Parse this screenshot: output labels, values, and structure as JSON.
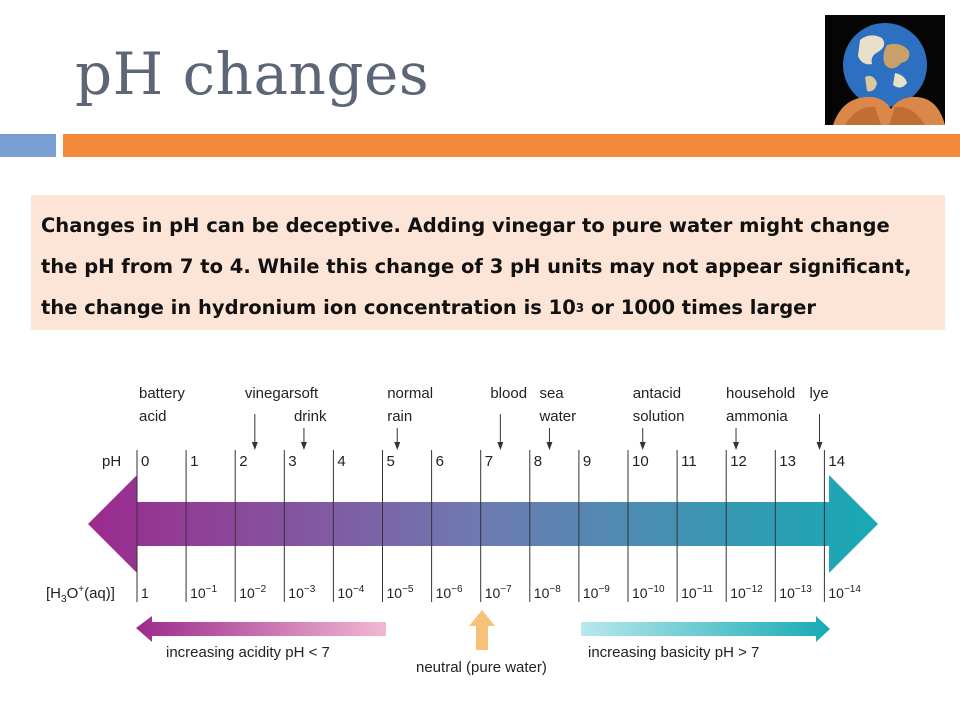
{
  "slide": {
    "title": "pH changes",
    "accent_colors": {
      "blue_bar": "#7a9fd4",
      "orange_bar": "#f3893a",
      "note_bg": "#fce4d6"
    },
    "image_icon": "earth-in-hands-icon",
    "note": {
      "line1": "Changes in pH can be deceptive.  Adding vinegar to pure water might change",
      "line2": "the pH from 7 to 4.  While this change of 3 pH units may not appear significant,",
      "line3_before": "the change in hydronium ion concentration is 10",
      "line3_sup": "3",
      "line3_after": " or 1000 times larger"
    }
  },
  "diagram": {
    "ph_label": "pH",
    "conc_label_main": "[H",
    "conc_sub": "3",
    "conc_label_o": "O",
    "conc_sup": "+",
    "conc_label_end": "(aq)]",
    "ph_values": [
      "0",
      "1",
      "2",
      "3",
      "4",
      "5",
      "6",
      "7",
      "8",
      "9",
      "10",
      "11",
      "12",
      "13",
      "14"
    ],
    "concentrations": [
      {
        "base": "1",
        "exp": ""
      },
      {
        "base": "10",
        "exp": "−1"
      },
      {
        "base": "10",
        "exp": "−2"
      },
      {
        "base": "10",
        "exp": "−3"
      },
      {
        "base": "10",
        "exp": "−4"
      },
      {
        "base": "10",
        "exp": "−5"
      },
      {
        "base": "10",
        "exp": "−6"
      },
      {
        "base": "10",
        "exp": "−7"
      },
      {
        "base": "10",
        "exp": "−8"
      },
      {
        "base": "10",
        "exp": "−9"
      },
      {
        "base": "10",
        "exp": "−10"
      },
      {
        "base": "10",
        "exp": "−11"
      },
      {
        "base": "10",
        "exp": "−12"
      },
      {
        "base": "10",
        "exp": "−13"
      },
      {
        "base": "10",
        "exp": "−14"
      }
    ],
    "substances": [
      {
        "lines": [
          "battery",
          "acid"
        ],
        "ph": 0
      },
      {
        "lines": [
          "vinegar"
        ],
        "ph": 2.4
      },
      {
        "lines": [
          "soft",
          "drink"
        ],
        "ph": 3.4
      },
      {
        "lines": [
          "normal",
          "rain"
        ],
        "ph": 5.3
      },
      {
        "lines": [
          "blood"
        ],
        "ph": 7.4
      },
      {
        "lines": [
          "sea",
          "water"
        ],
        "ph": 8.4
      },
      {
        "lines": [
          "antacid",
          "solution"
        ],
        "ph": 10.3
      },
      {
        "lines": [
          "household",
          "ammonia"
        ],
        "ph": 12.2
      },
      {
        "lines": [
          "lye"
        ],
        "ph": 13.9
      }
    ],
    "acid_label": "increasing acidity pH < 7",
    "neutral_label": "neutral (pure water)",
    "base_label": "increasing basicity pH > 7",
    "colors": {
      "acid_end": "#9c2a8c",
      "neutral": "#6e7ab2",
      "base_end": "#17aab5"
    }
  }
}
